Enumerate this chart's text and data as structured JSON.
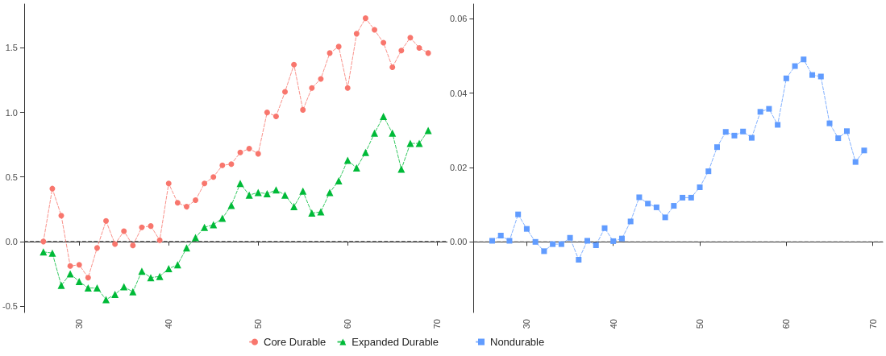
{
  "chart_data": [
    {
      "type": "line",
      "x": [
        26,
        27,
        28,
        29,
        30,
        31,
        32,
        33,
        34,
        35,
        36,
        37,
        38,
        39,
        40,
        41,
        42,
        43,
        44,
        45,
        46,
        47,
        48,
        49,
        50,
        51,
        52,
        53,
        54,
        55,
        56,
        57,
        58,
        59,
        60,
        61,
        62,
        63,
        64,
        65,
        66,
        67,
        68,
        69
      ],
      "series": [
        {
          "name": "Core Durable",
          "color": "#f8766d",
          "marker": "circle",
          "line_style": "dashed",
          "values": [
            0.0,
            0.41,
            0.2,
            -0.19,
            -0.18,
            -0.28,
            -0.05,
            0.16,
            -0.02,
            0.08,
            -0.03,
            0.11,
            0.12,
            0.01,
            0.45,
            0.3,
            0.27,
            0.32,
            0.45,
            0.5,
            0.59,
            0.6,
            0.69,
            0.72,
            0.68,
            1.0,
            0.97,
            1.16,
            1.37,
            1.02,
            1.19,
            1.26,
            1.46,
            1.51,
            1.19,
            1.61,
            1.73,
            1.64,
            1.54,
            1.35,
            1.48,
            1.58,
            1.5,
            1.46
          ]
        },
        {
          "name": "Expanded Durable",
          "color": "#00ba38",
          "marker": "triangle",
          "line_style": "dashed",
          "values": [
            -0.08,
            -0.09,
            -0.34,
            -0.25,
            -0.31,
            -0.36,
            -0.36,
            -0.45,
            -0.41,
            -0.35,
            -0.39,
            -0.23,
            -0.28,
            -0.27,
            -0.21,
            -0.18,
            -0.05,
            0.03,
            0.11,
            0.13,
            0.18,
            0.28,
            0.45,
            0.36,
            0.38,
            0.37,
            0.4,
            0.36,
            0.27,
            0.39,
            0.22,
            0.23,
            0.38,
            0.47,
            0.63,
            0.57,
            0.69,
            0.84,
            0.97,
            0.84,
            0.56,
            0.76,
            0.76,
            0.86
          ]
        }
      ],
      "xlim": [
        23.85,
        71.15
      ],
      "xticks": [
        30,
        40,
        50,
        60,
        70
      ],
      "ylim": [
        -0.55,
        1.84
      ],
      "yticks": [
        {
          "value": -0.5,
          "label": "-0.5"
        },
        {
          "value": 0,
          "label": "0.0"
        },
        {
          "value": 0.5,
          "label": "0.5"
        },
        {
          "value": 1,
          "label": "1.0"
        },
        {
          "value": 1.5,
          "label": "1.5"
        }
      ],
      "ref_lines": [
        {
          "axis": "y",
          "value": 0,
          "label": null,
          "color": "#444444",
          "line_style": "dashed"
        }
      ],
      "grid": false,
      "legend": "bottom right"
    },
    {
      "type": "line",
      "x": [
        26,
        27,
        28,
        29,
        30,
        31,
        32,
        33,
        34,
        35,
        36,
        37,
        38,
        39,
        40,
        41,
        42,
        43,
        44,
        45,
        46,
        47,
        48,
        49,
        50,
        51,
        52,
        53,
        54,
        55,
        56,
        57,
        58,
        59,
        60,
        61,
        62,
        63,
        64,
        65,
        66,
        67,
        68,
        69
      ],
      "series": [
        {
          "name": "Nondurable",
          "color": "#619cff",
          "marker": "square",
          "line_style": "dashed",
          "values": [
            0.0003,
            0.0017,
            0.0003,
            0.0074,
            0.0035,
            0.0,
            -0.0025,
            -0.0006,
            -0.0006,
            0.0011,
            -0.0048,
            0.0003,
            -0.0009,
            0.0037,
            0.0002,
            0.0009,
            0.0055,
            0.012,
            0.0103,
            0.0093,
            0.0066,
            0.0097,
            0.0119,
            0.0119,
            0.0147,
            0.019,
            0.0255,
            0.0296,
            0.0286,
            0.0297,
            0.028,
            0.035,
            0.0358,
            0.0315,
            0.044,
            0.0473,
            0.0491,
            0.0449,
            0.0445,
            0.0319,
            0.0279,
            0.0298,
            0.0215,
            0.0246
          ]
        }
      ],
      "xlim": [
        23.85,
        71.15
      ],
      "xticks": [
        30,
        40,
        50,
        60,
        70
      ],
      "ylim": [
        -0.019,
        0.064
      ],
      "yticks": [
        {
          "value": 0,
          "label": "0.00"
        },
        {
          "value": 0.02,
          "label": "0.02"
        },
        {
          "value": 0.04,
          "label": "0.04"
        },
        {
          "value": 0.06,
          "label": "0.06"
        }
      ],
      "ref_lines": [
        {
          "axis": "y",
          "value": 0,
          "label": null,
          "color": "#444444",
          "line_style": "dashed"
        }
      ],
      "grid": false,
      "legend": "bottom left"
    }
  ]
}
